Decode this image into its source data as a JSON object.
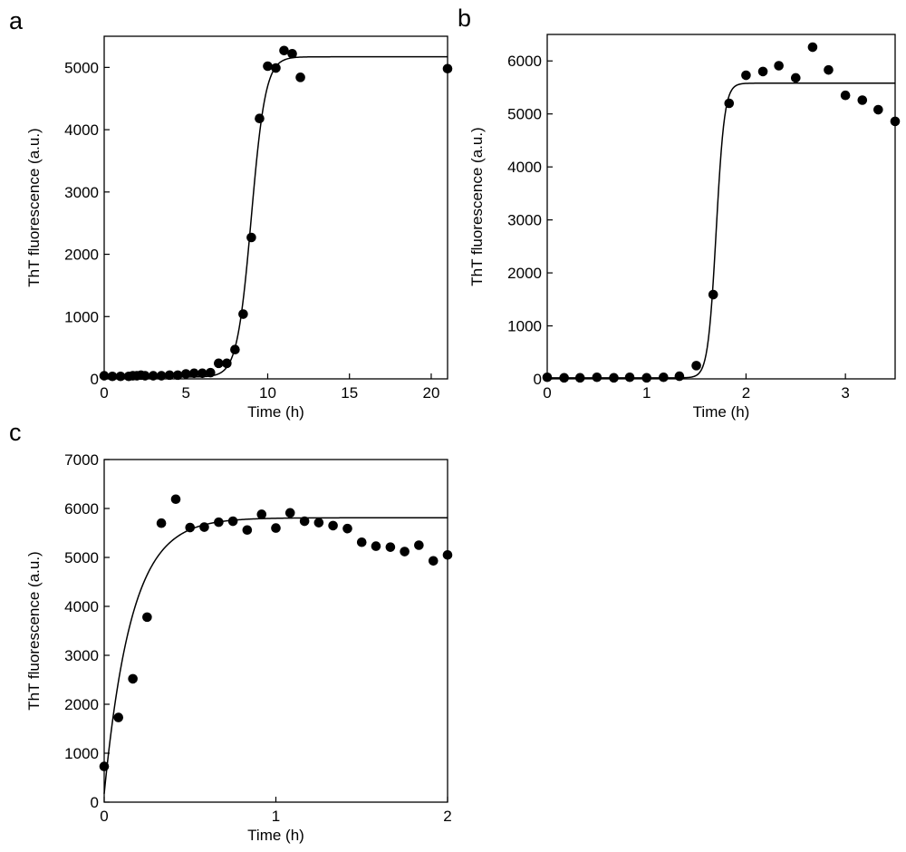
{
  "chart_data": [
    {
      "panel": "a",
      "type": "scatter",
      "xlabel": "Time (h)",
      "ylabel": "ThT fluorescence (a.u.)",
      "xlim": [
        0,
        21
      ],
      "ylim": [
        0,
        5500
      ],
      "xticks": [
        0,
        5,
        10,
        15,
        20
      ],
      "yticks": [
        0,
        1000,
        2000,
        3000,
        4000,
        5000
      ],
      "fit": {
        "model": "sigmoid",
        "y0": 30,
        "ymax": 5170,
        "t_mid": 9.0,
        "k": 2.3
      },
      "x": [
        0,
        0.5,
        1,
        1.5,
        1.75,
        2,
        2.25,
        2.5,
        3,
        3.5,
        4,
        4.5,
        5,
        5.5,
        6,
        6.5,
        7,
        7.5,
        8,
        8.5,
        9,
        9.5,
        10,
        10.5,
        11,
        11.5,
        12,
        21
      ],
      "y": [
        50,
        40,
        40,
        40,
        50,
        50,
        60,
        50,
        50,
        50,
        60,
        60,
        80,
        90,
        90,
        100,
        250,
        250,
        470,
        1040,
        2270,
        4180,
        5020,
        4990,
        5270,
        5220,
        4840,
        4980
      ]
    },
    {
      "panel": "b",
      "type": "scatter",
      "xlabel": "Time (h)",
      "ylabel": "ThT fluorescence (a.u.)",
      "xlim": [
        0,
        3.5
      ],
      "ylim": [
        0,
        6500
      ],
      "xticks": [
        0,
        1,
        2,
        3
      ],
      "yticks": [
        0,
        1000,
        2000,
        3000,
        4000,
        5000,
        6000
      ],
      "fit": {
        "model": "sigmoid",
        "y0": 20,
        "ymax": 5580,
        "t_mid": 1.7,
        "k": 24
      },
      "x": [
        0,
        0.17,
        0.33,
        0.5,
        0.67,
        0.83,
        1.0,
        1.17,
        1.33,
        1.5,
        1.67,
        1.83,
        2.0,
        2.17,
        2.33,
        2.5,
        2.67,
        2.83,
        3.0,
        3.17,
        3.33,
        3.5
      ],
      "y": [
        30,
        20,
        20,
        30,
        20,
        30,
        20,
        30,
        50,
        250,
        1590,
        5200,
        5730,
        5800,
        5910,
        5680,
        6260,
        5830,
        5350,
        5260,
        5080,
        4860
      ]
    },
    {
      "panel": "c",
      "type": "scatter",
      "xlabel": "Time (h)",
      "ylabel": "ThT fluorescence (a.u.)",
      "xlim": [
        0,
        2
      ],
      "ylim": [
        0,
        7000
      ],
      "xticks": [
        0,
        1,
        2
      ],
      "yticks": [
        0,
        1000,
        2000,
        3000,
        4000,
        5000,
        6000,
        7000
      ],
      "fit": {
        "model": "exponential",
        "y0": 170,
        "ymax": 5810,
        "k": 6.3
      },
      "x": [
        0,
        0.083,
        0.167,
        0.25,
        0.333,
        0.417,
        0.5,
        0.583,
        0.667,
        0.75,
        0.833,
        0.917,
        1.0,
        1.083,
        1.167,
        1.25,
        1.333,
        1.417,
        1.5,
        1.583,
        1.667,
        1.75,
        1.833,
        1.917,
        2.0
      ],
      "y": [
        730,
        1730,
        2520,
        3780,
        5700,
        6190,
        5610,
        5620,
        5720,
        5740,
        5560,
        5880,
        5600,
        5910,
        5740,
        5710,
        5650,
        5590,
        5310,
        5230,
        5210,
        5120,
        5250,
        4930,
        5050
      ]
    }
  ]
}
